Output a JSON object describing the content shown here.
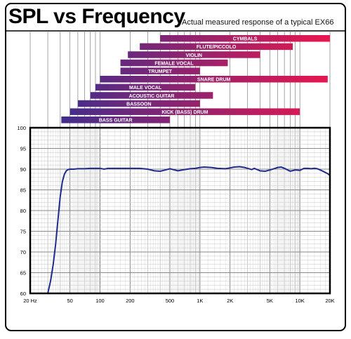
{
  "header": {
    "title": "SPL vs Frequency",
    "subtitle": "Actual measured response of a typical EX66"
  },
  "colors": {
    "bar_start": "#2e3192",
    "bar_end": "#e8174f",
    "curve": "#1f2a8c",
    "grid": "#9a9a9a",
    "frame": "#000000"
  },
  "chart_data": {
    "type": "line",
    "title": "SPL vs Frequency",
    "subtitle": "Actual measured response of a typical EX66",
    "xscale": "log",
    "xlim": [
      20,
      20000
    ],
    "ylim": [
      60,
      100
    ],
    "grid": true,
    "x_tick_values": [
      20,
      50,
      100,
      200,
      500,
      1000,
      2000,
      5000,
      10000,
      20000
    ],
    "x_tick_labels": [
      "20 Hz",
      "50",
      "100",
      "200",
      "500",
      "1K",
      "2K",
      "5K",
      "10K",
      "20K"
    ],
    "y_ticks": [
      60,
      65,
      70,
      75,
      80,
      85,
      90,
      95,
      100
    ],
    "series": [
      {
        "x": [
          30,
          32,
          34,
          36,
          38,
          40,
          42,
          44,
          46,
          48,
          50,
          55,
          60,
          70,
          80,
          100,
          110,
          120,
          150,
          200,
          250,
          300,
          350,
          400,
          450,
          500,
          600,
          700,
          800,
          900,
          1000,
          1100,
          1300,
          1500,
          1800,
          2000,
          2200,
          2500,
          2800,
          3000,
          3300,
          3500,
          4000,
          4500,
          5000,
          5500,
          6000,
          6500,
          7000,
          8000,
          9000,
          10000,
          11000,
          12000,
          13000,
          14000,
          15000,
          16000,
          17000,
          18000,
          19000,
          20000
        ],
        "y": [
          60.0,
          63.0,
          67.0,
          72.0,
          78.0,
          83.5,
          87.0,
          88.8,
          89.6,
          89.9,
          90.0,
          90.0,
          90.1,
          90.1,
          90.2,
          90.2,
          90.0,
          90.2,
          90.2,
          90.2,
          90.2,
          90.0,
          89.6,
          89.5,
          89.8,
          90.1,
          89.6,
          89.9,
          90.1,
          90.2,
          90.4,
          90.5,
          90.4,
          90.2,
          90.1,
          90.3,
          90.5,
          90.6,
          90.4,
          90.2,
          89.9,
          90.2,
          89.6,
          89.5,
          89.8,
          90.1,
          90.4,
          90.5,
          90.2,
          89.5,
          89.8,
          89.7,
          90.2,
          90.2,
          90.1,
          90.2,
          90.1,
          89.8,
          89.5,
          89.2,
          88.9,
          88.5
        ]
      }
    ],
    "instruments": [
      {
        "label": "CYMBALS",
        "low": 400,
        "high": 20000
      },
      {
        "label": "FLUTE/PICCOLO",
        "low": 250,
        "high": 8500
      },
      {
        "label": "VIOLIN",
        "low": 190,
        "high": 4000
      },
      {
        "label": "FEMALE VOCAL",
        "low": 160,
        "high": 1900
      },
      {
        "label": "TRUMPET",
        "low": 160,
        "high": 1000
      },
      {
        "label": "SNARE DRUM",
        "low": 100,
        "high": 19000
      },
      {
        "label": "MALE VOCAL",
        "low": 90,
        "high": 900
      },
      {
        "label": "ACOUSTIC GUITAR",
        "low": 80,
        "high": 1350
      },
      {
        "label": "BASSOON",
        "low": 60,
        "high": 1000
      },
      {
        "label": "KICK (BASS) DRUM",
        "low": 50,
        "high": 10000
      },
      {
        "label": "BASS GUITAR",
        "low": 41,
        "high": 500
      }
    ]
  }
}
